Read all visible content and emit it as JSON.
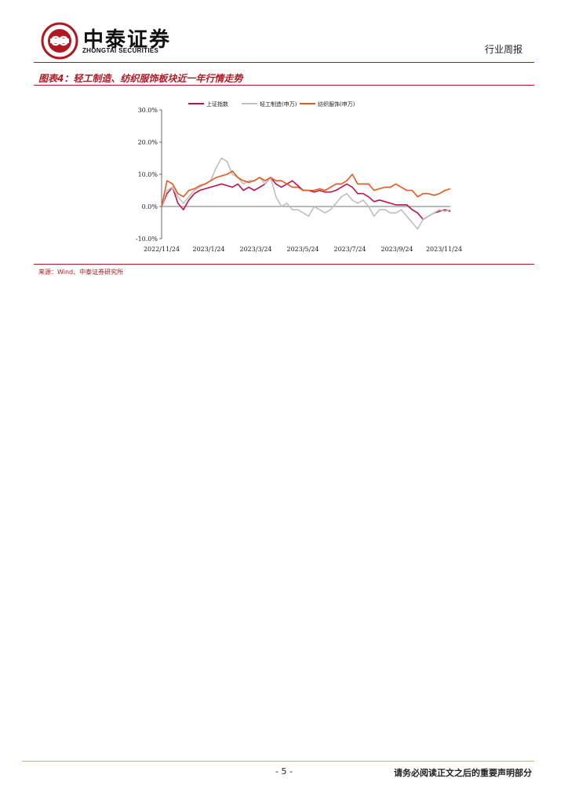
{
  "header": {
    "company_cn": "中泰证券",
    "company_en": "ZHONGTAI SECURITIES",
    "report_type": "行业周报"
  },
  "figure": {
    "title": "图表4：轻工制造、纺织服饰板块近一年行情走势",
    "source": "来源：Wind、中泰证券研究所"
  },
  "colors": {
    "brand_red": "#b01822",
    "series_sh": "#c0134a",
    "series_light": "#bfbfbf",
    "series_textile": "#e8581c"
  },
  "chart_data": {
    "type": "line",
    "x_ticks": [
      "2022/11/24",
      "2023/1/24",
      "2023/3/24",
      "2023/5/24",
      "2023/7/24",
      "2023/9/24",
      "2023/11/24"
    ],
    "y_ticks": [
      "30.0%",
      "20.0%",
      "10.0%",
      "0.0%",
      "-10.0%"
    ],
    "ylim": [
      -10,
      30
    ],
    "x": [
      "2022-11-24",
      "2022-12-01",
      "2022-12-08",
      "2022-12-15",
      "2022-12-22",
      "2022-12-29",
      "2023-01-05",
      "2023-01-12",
      "2023-01-19",
      "2023-01-26",
      "2023-02-02",
      "2023-02-09",
      "2023-02-16",
      "2023-02-23",
      "2023-03-02",
      "2023-03-09",
      "2023-03-16",
      "2023-03-23",
      "2023-03-30",
      "2023-04-06",
      "2023-04-13",
      "2023-04-20",
      "2023-04-27",
      "2023-05-04",
      "2023-05-11",
      "2023-05-18",
      "2023-05-25",
      "2023-06-01",
      "2023-06-08",
      "2023-06-15",
      "2023-06-22",
      "2023-06-29",
      "2023-07-06",
      "2023-07-13",
      "2023-07-20",
      "2023-07-27",
      "2023-08-03",
      "2023-08-10",
      "2023-08-17",
      "2023-08-24",
      "2023-08-31",
      "2023-09-07",
      "2023-09-14",
      "2023-09-21",
      "2023-09-28",
      "2023-10-05",
      "2023-10-12",
      "2023-10-19",
      "2023-10-26",
      "2023-11-02",
      "2023-11-09",
      "2023-11-16",
      "2023-11-23",
      "2023-11-30"
    ],
    "series": [
      {
        "name": "上证指数",
        "values": [
          0,
          4,
          6,
          1,
          -1,
          2,
          4,
          5,
          5.5,
          6,
          6.5,
          7,
          6.5,
          6,
          7,
          5,
          6,
          5,
          6,
          7,
          9,
          7,
          6,
          7,
          8,
          6.5,
          5,
          5,
          4.5,
          5,
          4.5,
          4.5,
          5,
          6,
          7,
          6,
          4,
          4,
          3,
          1.5,
          2,
          1.5,
          1,
          0.5,
          0.5,
          0.5,
          -1,
          -2,
          -4,
          -3,
          -2,
          -1.5,
          -1,
          -1.5
        ]
      },
      {
        "name": "轻工制造(申万)",
        "values": [
          0,
          5,
          6,
          3,
          1,
          3,
          5,
          6,
          7,
          8,
          12,
          15,
          14,
          10,
          9,
          7,
          8,
          8,
          9,
          7,
          9,
          3,
          0,
          1,
          -1,
          -1,
          -2,
          -3,
          0,
          -1,
          -2,
          -1,
          1,
          3,
          4,
          2,
          1,
          2,
          0,
          -3,
          -1,
          -1,
          -2,
          -2,
          -1,
          -3,
          -5,
          -7,
          -4,
          -3,
          -2,
          -1,
          -1.5,
          -1
        ]
      },
      {
        "name": "纺织服饰(申万)",
        "values": [
          0,
          8,
          7,
          4,
          3,
          5,
          5.5,
          6.5,
          7,
          8,
          9,
          9.5,
          10,
          11,
          9,
          8,
          7.5,
          8,
          9,
          8,
          9,
          8,
          8,
          7,
          6,
          6,
          5,
          5,
          5,
          5.5,
          5,
          6,
          7,
          7,
          8,
          10,
          7,
          7,
          7,
          5,
          5.5,
          6,
          6,
          7,
          6,
          5,
          5,
          3,
          4,
          4,
          3.5,
          4,
          5,
          5.5
        ]
      }
    ],
    "legend_position": "top",
    "grid": false
  },
  "footer": {
    "page": "- 5 -",
    "disclaimer": "请务必阅读正文之后的重要声明部分"
  }
}
